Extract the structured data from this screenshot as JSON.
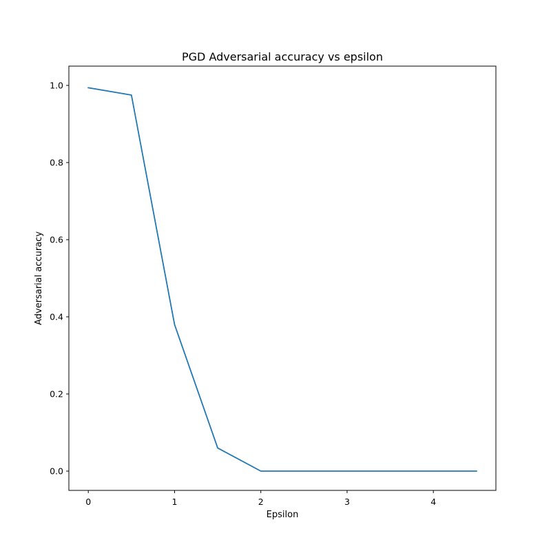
{
  "colors": {
    "line": "#1f77b4",
    "axes": "#000000",
    "background": "#ffffff"
  },
  "chart_data": {
    "type": "line",
    "title": "PGD Adversarial accuracy vs epsilon",
    "xlabel": "Epsilon",
    "ylabel": "Adversarial accuracy",
    "xlim": [
      -0.225,
      4.725
    ],
    "ylim": [
      -0.05,
      1.05
    ],
    "xticks": [
      0,
      1,
      2,
      3,
      4
    ],
    "xtick_labels": [
      "0",
      "1",
      "2",
      "3",
      "4"
    ],
    "yticks": [
      0.0,
      0.2,
      0.4,
      0.6,
      0.8,
      1.0
    ],
    "ytick_labels": [
      "0.0",
      "0.2",
      "0.4",
      "0.6",
      "0.8",
      "1.0"
    ],
    "grid": false,
    "legend": false,
    "series": [
      {
        "x": [
          0,
          0.5,
          1.0,
          1.5,
          2.0,
          2.5,
          3.0,
          3.5,
          4.0,
          4.5
        ],
        "y": [
          0.994,
          0.975,
          0.38,
          0.06,
          0.0,
          0.0,
          0.0,
          0.0,
          0.0,
          0.0
        ]
      }
    ]
  }
}
